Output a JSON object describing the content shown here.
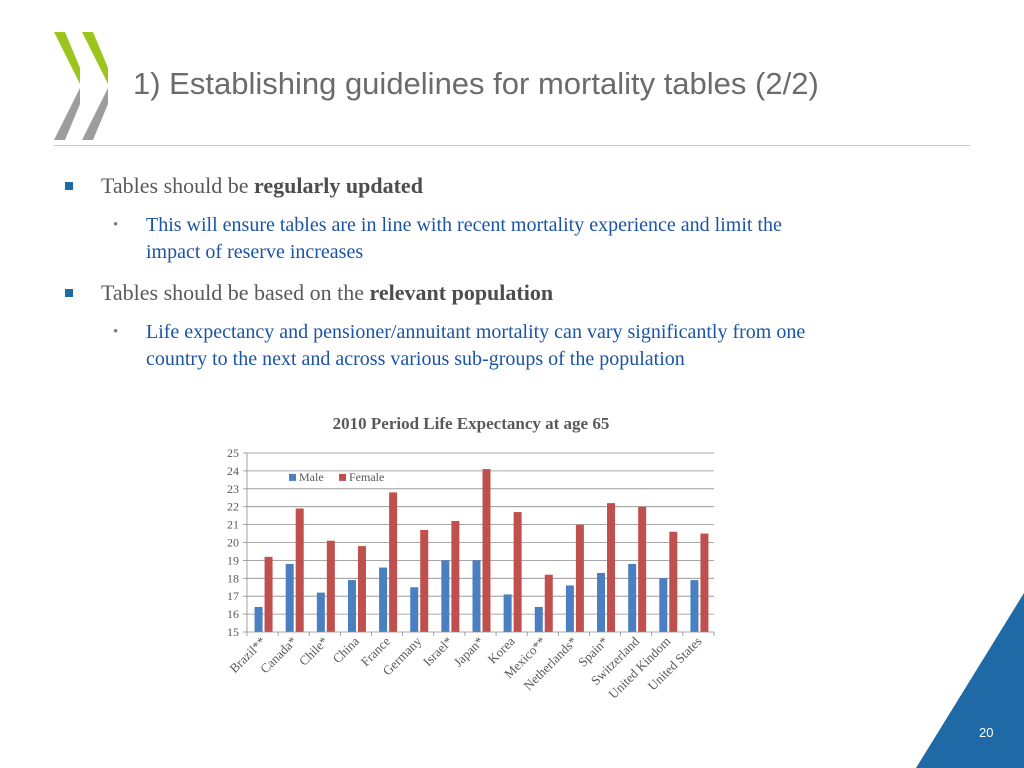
{
  "slide": {
    "title": "1) Establishing guidelines for mortality tables (2/2)",
    "page_number": "20"
  },
  "bullets": [
    {
      "prefix": "Tables should be ",
      "bold": "regularly updated",
      "sub": "This will ensure tables are in line with recent mortality experience and limit the",
      "sub_cont": "impact of reserve increases"
    },
    {
      "prefix": "Tables should be based on the ",
      "bold": "relevant population",
      "sub": "Life expectancy and pensioner/annuitant mortality can vary significantly from one",
      "sub_cont": "country to the next and across various sub-groups of the population"
    }
  ],
  "colors": {
    "logo_green": "#9bc41c",
    "logo_gray": "#9d9d9d",
    "male": "#4a7fc1",
    "female": "#c0504d",
    "corner": "#1f6aa6"
  },
  "chart_data": {
    "type": "bar",
    "title": "2010 Period Life Expectancy at age 65",
    "categories": [
      "Brazil**",
      "Canada*",
      "Chile*",
      "China",
      "France",
      "Germany",
      "Israel*",
      "Japan*",
      "Korea",
      "Mexico**",
      "Netherlands*",
      "Spain*",
      "Switzerland",
      "United Kindom",
      "United States"
    ],
    "series": [
      {
        "name": "Male",
        "values": [
          16.4,
          18.8,
          17.2,
          17.9,
          18.6,
          17.5,
          19.0,
          19.0,
          17.1,
          16.4,
          17.6,
          18.3,
          18.8,
          18.0,
          17.9
        ]
      },
      {
        "name": "Female",
        "values": [
          19.2,
          21.9,
          20.1,
          19.8,
          22.8,
          20.7,
          21.2,
          24.1,
          21.7,
          18.2,
          21.0,
          22.2,
          22.0,
          20.6,
          20.5
        ]
      }
    ],
    "ylim": [
      15,
      25
    ],
    "yticks": [
      "15",
      "16",
      "17",
      "18",
      "19",
      "20",
      "21",
      "22",
      "23",
      "24",
      "25"
    ],
    "legend": "top-left inside plot",
    "grid": true
  }
}
